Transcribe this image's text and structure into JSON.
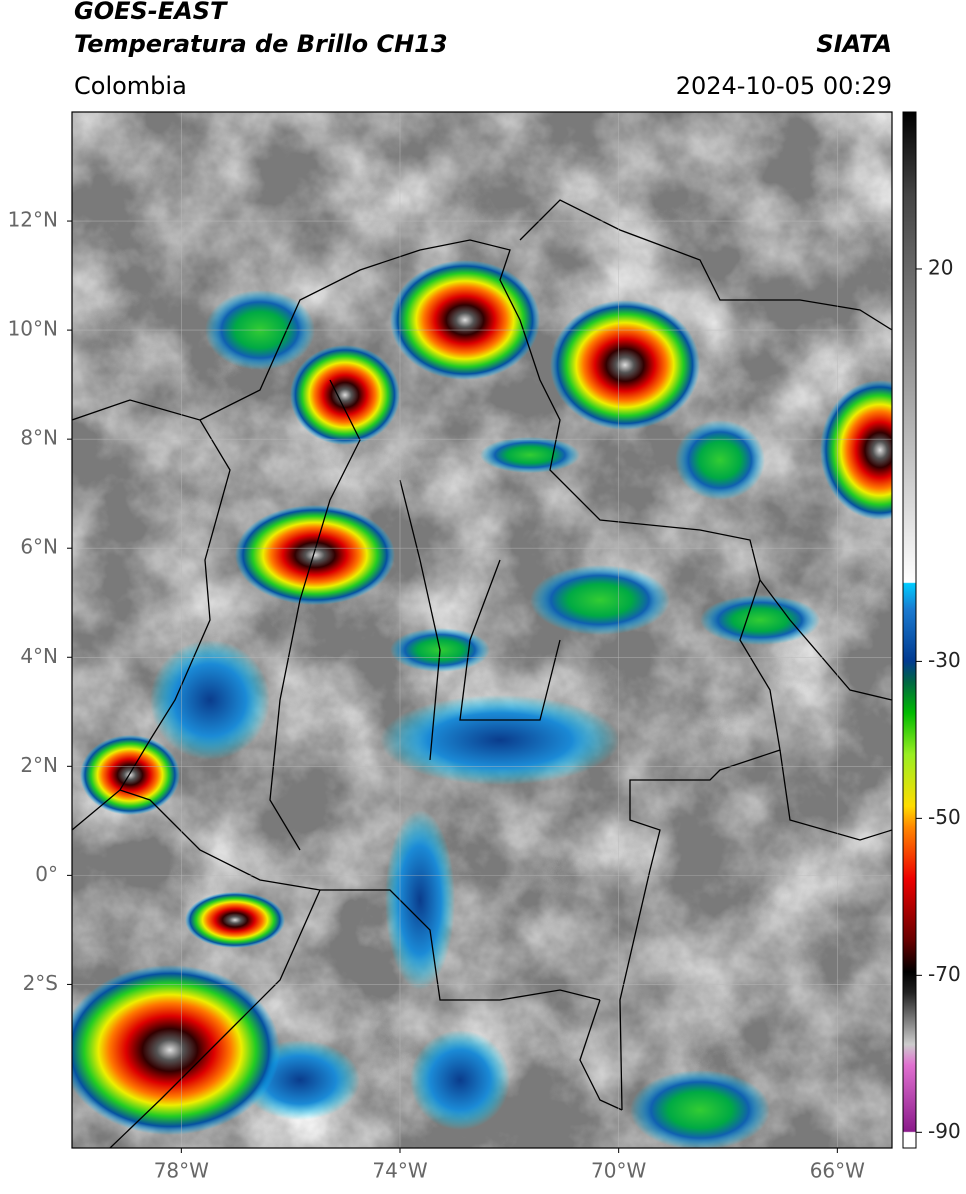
{
  "header": {
    "satellite": "GOES-EAST",
    "product": "Temperatura de Brillo CH13",
    "source": "SIATA",
    "region": "Colombia",
    "datetime": "2024-10-05 00:29"
  },
  "map": {
    "lonlim": [
      -80,
      -65
    ],
    "latlim": [
      -5,
      14
    ],
    "lonticks": [
      {
        "value": -78,
        "label": "78°W"
      },
      {
        "value": -74,
        "label": "74°W"
      },
      {
        "value": -70,
        "label": "70°W"
      },
      {
        "value": -66,
        "label": "66°W"
      }
    ],
    "latticks": [
      {
        "value": 12,
        "label": "12°N"
      },
      {
        "value": 10,
        "label": "10°N"
      },
      {
        "value": 8,
        "label": "8°N"
      },
      {
        "value": 6,
        "label": "6°N"
      },
      {
        "value": 4,
        "label": "4°N"
      },
      {
        "value": 2,
        "label": "2°N"
      },
      {
        "value": 0,
        "label": "0°"
      },
      {
        "value": -2,
        "label": "2°S"
      }
    ],
    "grid": true
  },
  "colorbar": {
    "lim": [
      -92,
      40
    ],
    "ticks": [
      20,
      -30,
      -50,
      -70,
      -90
    ]
  }
}
